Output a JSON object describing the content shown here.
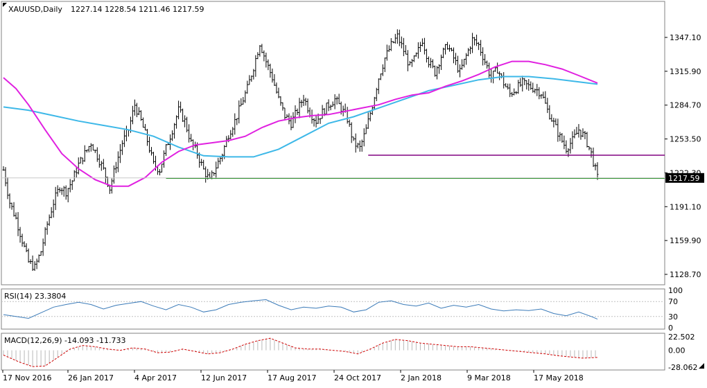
{
  "chart_data": {
    "type": "candlestick",
    "title": "XAUUSD,Daily",
    "ohlc_label": "1227.14 1228.54 1211.46 1217.59",
    "last_price_label": "1217.59",
    "last_price": 1217.59,
    "y_ticks": [
      "1347.10",
      "1315.90",
      "1284.70",
      "1253.50",
      "1222.30",
      "1191.10",
      "1159.90",
      "1128.70"
    ],
    "y_tick_values": [
      1347.1,
      1315.9,
      1284.7,
      1253.5,
      1222.3,
      1191.1,
      1159.9,
      1128.7
    ],
    "ylim": [
      1120,
      1375
    ],
    "x_ticks": [
      "17 Nov 2016",
      "26 Jan 2017",
      "4 Apr 2017",
      "12 Jun 2017",
      "17 Aug 2017",
      "24 Oct 2017",
      "2 Jan 2018",
      "9 Mar 2018",
      "17 May 2018"
    ],
    "close_series": [
      [
        0,
        1225
      ],
      [
        3,
        1195
      ],
      [
        6,
        1180
      ],
      [
        9,
        1160
      ],
      [
        12,
        1140
      ],
      [
        15,
        1135
      ],
      [
        18,
        1150
      ],
      [
        21,
        1175
      ],
      [
        24,
        1195
      ],
      [
        27,
        1210
      ],
      [
        30,
        1205
      ],
      [
        33,
        1215
      ],
      [
        36,
        1230
      ],
      [
        39,
        1240
      ],
      [
        42,
        1250
      ],
      [
        45,
        1238
      ],
      [
        48,
        1225
      ],
      [
        51,
        1208
      ],
      [
        54,
        1230
      ],
      [
        57,
        1250
      ],
      [
        60,
        1262
      ],
      [
        63,
        1285
      ],
      [
        66,
        1270
      ],
      [
        69,
        1252
      ],
      [
        72,
        1230
      ],
      [
        75,
        1225
      ],
      [
        78,
        1245
      ],
      [
        81,
        1262
      ],
      [
        84,
        1280
      ],
      [
        87,
        1270
      ],
      [
        90,
        1250
      ],
      [
        93,
        1240
      ],
      [
        96,
        1225
      ],
      [
        99,
        1215
      ],
      [
        102,
        1228
      ],
      [
        105,
        1240
      ],
      [
        108,
        1258
      ],
      [
        111,
        1270
      ],
      [
        114,
        1285
      ],
      [
        117,
        1300
      ],
      [
        120,
        1320
      ],
      [
        123,
        1342
      ],
      [
        126,
        1325
      ],
      [
        129,
        1310
      ],
      [
        132,
        1290
      ],
      [
        135,
        1275
      ],
      [
        138,
        1268
      ],
      [
        141,
        1280
      ],
      [
        144,
        1292
      ],
      [
        147,
        1278
      ],
      [
        150,
        1270
      ],
      [
        153,
        1278
      ],
      [
        156,
        1285
      ],
      [
        159,
        1290
      ],
      [
        162,
        1282
      ],
      [
        165,
        1272
      ],
      [
        168,
        1250
      ],
      [
        171,
        1245
      ],
      [
        174,
        1262
      ],
      [
        177,
        1285
      ],
      [
        180,
        1310
      ],
      [
        183,
        1328
      ],
      [
        186,
        1340
      ],
      [
        189,
        1348
      ],
      [
        192,
        1335
      ],
      [
        195,
        1320
      ],
      [
        198,
        1330
      ],
      [
        201,
        1345
      ],
      [
        204,
        1325
      ],
      [
        207,
        1315
      ],
      [
        210,
        1330
      ],
      [
        213,
        1340
      ],
      [
        216,
        1328
      ],
      [
        219,
        1315
      ],
      [
        222,
        1330
      ],
      [
        225,
        1345
      ],
      [
        228,
        1340
      ],
      [
        231,
        1325
      ],
      [
        234,
        1310
      ],
      [
        237,
        1318
      ],
      [
        240,
        1305
      ],
      [
        243,
        1295
      ],
      [
        246,
        1300
      ],
      [
        249,
        1305
      ],
      [
        252,
        1302
      ],
      [
        255,
        1300
      ],
      [
        258,
        1296
      ],
      [
        261,
        1280
      ],
      [
        264,
        1268
      ],
      [
        267,
        1255
      ],
      [
        270,
        1245
      ],
      [
        273,
        1252
      ],
      [
        276,
        1262
      ],
      [
        279,
        1255
      ],
      [
        282,
        1240
      ],
      [
        285,
        1217.59
      ]
    ],
    "series": [
      {
        "kind": "ma-slow",
        "points": [
          [
            0,
            1283
          ],
          [
            12,
            1280
          ],
          [
            24,
            1275
          ],
          [
            36,
            1270
          ],
          [
            48,
            1266
          ],
          [
            60,
            1262
          ],
          [
            72,
            1256
          ],
          [
            84,
            1246
          ],
          [
            96,
            1238
          ],
          [
            108,
            1237
          ],
          [
            120,
            1237
          ],
          [
            132,
            1244
          ],
          [
            144,
            1256
          ],
          [
            156,
            1268
          ],
          [
            168,
            1274
          ],
          [
            180,
            1282
          ],
          [
            192,
            1290
          ],
          [
            204,
            1298
          ],
          [
            216,
            1303
          ],
          [
            228,
            1308
          ],
          [
            240,
            1311
          ],
          [
            252,
            1311
          ],
          [
            264,
            1309
          ],
          [
            285,
            1304
          ]
        ],
        "color": "#3db8e8"
      },
      {
        "kind": "ma-fast",
        "points": [
          [
            0,
            1310
          ],
          [
            6,
            1300
          ],
          [
            12,
            1285
          ],
          [
            20,
            1262
          ],
          [
            28,
            1240
          ],
          [
            36,
            1226
          ],
          [
            44,
            1216
          ],
          [
            52,
            1210
          ],
          [
            60,
            1210
          ],
          [
            68,
            1218
          ],
          [
            76,
            1232
          ],
          [
            84,
            1242
          ],
          [
            92,
            1248
          ],
          [
            100,
            1250
          ],
          [
            108,
            1252
          ],
          [
            116,
            1256
          ],
          [
            124,
            1264
          ],
          [
            132,
            1270
          ],
          [
            140,
            1273
          ],
          [
            148,
            1275
          ],
          [
            156,
            1276
          ],
          [
            164,
            1279
          ],
          [
            172,
            1282
          ],
          [
            180,
            1285
          ],
          [
            188,
            1290
          ],
          [
            196,
            1294
          ],
          [
            204,
            1296
          ],
          [
            212,
            1302
          ],
          [
            220,
            1307
          ],
          [
            228,
            1313
          ],
          [
            236,
            1320
          ],
          [
            244,
            1325
          ],
          [
            252,
            1325
          ],
          [
            260,
            1322
          ],
          [
            268,
            1318
          ],
          [
            276,
            1312
          ],
          [
            285,
            1305
          ]
        ],
        "color": "#e020e0"
      }
    ],
    "levels": [
      {
        "price": 1238.5,
        "from": 175,
        "to": 318,
        "color": "#800080"
      },
      {
        "price": 1217.3,
        "from": 78,
        "to": 318,
        "color": "#008000"
      }
    ],
    "rsi": {
      "label": "RSI(14) 23.3804",
      "ticks": [
        "100",
        "70",
        "30",
        "0"
      ],
      "tick_values": [
        100,
        70,
        30,
        0
      ],
      "color": "#3a7ab8",
      "points": [
        [
          0,
          35
        ],
        [
          6,
          30
        ],
        [
          12,
          25
        ],
        [
          18,
          40
        ],
        [
          24,
          55
        ],
        [
          30,
          62
        ],
        [
          36,
          68
        ],
        [
          42,
          62
        ],
        [
          48,
          50
        ],
        [
          54,
          60
        ],
        [
          60,
          65
        ],
        [
          66,
          70
        ],
        [
          72,
          58
        ],
        [
          78,
          48
        ],
        [
          84,
          62
        ],
        [
          90,
          55
        ],
        [
          96,
          42
        ],
        [
          102,
          48
        ],
        [
          108,
          62
        ],
        [
          114,
          68
        ],
        [
          120,
          72
        ],
        [
          126,
          75
        ],
        [
          132,
          60
        ],
        [
          138,
          48
        ],
        [
          144,
          55
        ],
        [
          150,
          52
        ],
        [
          156,
          58
        ],
        [
          162,
          55
        ],
        [
          168,
          42
        ],
        [
          174,
          48
        ],
        [
          180,
          68
        ],
        [
          186,
          72
        ],
        [
          192,
          62
        ],
        [
          198,
          58
        ],
        [
          204,
          66
        ],
        [
          210,
          52
        ],
        [
          216,
          60
        ],
        [
          222,
          55
        ],
        [
          228,
          62
        ],
        [
          234,
          50
        ],
        [
          240,
          45
        ],
        [
          246,
          48
        ],
        [
          252,
          46
        ],
        [
          258,
          50
        ],
        [
          264,
          38
        ],
        [
          270,
          32
        ],
        [
          276,
          42
        ],
        [
          282,
          30
        ],
        [
          285,
          23
        ]
      ]
    },
    "macd": {
      "label": "MACD(12,26,9) -14.093 -11.733",
      "ticks": [
        "22.502",
        "0.00",
        "-28.062"
      ],
      "tick_values": [
        22.502,
        0,
        -28.062
      ],
      "bar_color": "#b8b8b8",
      "signal_color": "#d00000",
      "signal_points": [
        [
          0,
          -8
        ],
        [
          8,
          -20
        ],
        [
          14,
          -27
        ],
        [
          20,
          -26
        ],
        [
          26,
          -12
        ],
        [
          32,
          2
        ],
        [
          38,
          8
        ],
        [
          44,
          6
        ],
        [
          50,
          2
        ],
        [
          56,
          0
        ],
        [
          62,
          4
        ],
        [
          68,
          2
        ],
        [
          74,
          -4
        ],
        [
          80,
          -3
        ],
        [
          86,
          2
        ],
        [
          92,
          -2
        ],
        [
          98,
          -6
        ],
        [
          104,
          -4
        ],
        [
          110,
          2
        ],
        [
          116,
          10
        ],
        [
          122,
          16
        ],
        [
          128,
          20
        ],
        [
          134,
          12
        ],
        [
          140,
          4
        ],
        [
          146,
          2
        ],
        [
          152,
          2
        ],
        [
          158,
          0
        ],
        [
          164,
          -2
        ],
        [
          170,
          -6
        ],
        [
          176,
          2
        ],
        [
          182,
          12
        ],
        [
          188,
          18
        ],
        [
          194,
          16
        ],
        [
          200,
          12
        ],
        [
          206,
          10
        ],
        [
          212,
          8
        ],
        [
          218,
          6
        ],
        [
          224,
          6
        ],
        [
          230,
          4
        ],
        [
          236,
          2
        ],
        [
          242,
          0
        ],
        [
          248,
          -2
        ],
        [
          254,
          -4
        ],
        [
          260,
          -6
        ],
        [
          266,
          -9
        ],
        [
          272,
          -11
        ],
        [
          278,
          -13
        ],
        [
          285,
          -11.7
        ]
      ]
    }
  }
}
